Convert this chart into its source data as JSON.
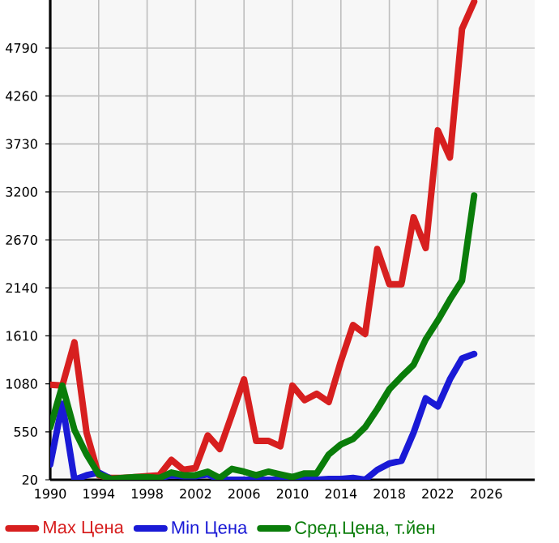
{
  "chart_data": {
    "type": "line",
    "x": [
      1990,
      1991,
      1992,
      1993,
      1994,
      1995,
      1996,
      1997,
      1998,
      1999,
      2000,
      2001,
      2002,
      2003,
      2004,
      2005,
      2006,
      2007,
      2008,
      2009,
      2010,
      2011,
      2012,
      2013,
      2014,
      2015,
      2016,
      2017,
      2018,
      2019,
      2020,
      2021,
      2022,
      2023,
      2024,
      2025
    ],
    "series": [
      {
        "name": "Max Цена",
        "color": "#d71f1f",
        "values": [
          1070,
          1060,
          1540,
          540,
          70,
          40,
          40,
          50,
          60,
          70,
          240,
          130,
          150,
          510,
          360,
          740,
          1130,
          450,
          450,
          390,
          1060,
          900,
          970,
          880,
          1330,
          1730,
          1630,
          2570,
          2180,
          2180,
          2920,
          2580,
          3880,
          3580,
          5000,
          5300
        ]
      },
      {
        "name": "Min Цена",
        "color": "#1a1ad6",
        "values": [
          190,
          860,
          20,
          70,
          100,
          30,
          30,
          40,
          20,
          40,
          70,
          60,
          60,
          80,
          20,
          20,
          20,
          20,
          20,
          20,
          20,
          20,
          20,
          30,
          30,
          40,
          20,
          130,
          200,
          230,
          540,
          920,
          830,
          1130,
          1360,
          1410
        ]
      },
      {
        "name": "Сред.Цена, т.йен",
        "color": "#0a7d0a",
        "values": [
          600,
          1060,
          570,
          300,
          80,
          30,
          40,
          50,
          50,
          40,
          100,
          70,
          70,
          110,
          40,
          140,
          110,
          70,
          110,
          80,
          50,
          90,
          90,
          300,
          410,
          470,
          600,
          800,
          1020,
          1160,
          1290,
          1570,
          1780,
          2010,
          2220,
          3160
        ]
      }
    ],
    "xlim": [
      1990,
      2030
    ],
    "ylim": [
      20,
      5320
    ],
    "xticks": [
      1990,
      1994,
      1998,
      2002,
      2006,
      2010,
      2014,
      2018,
      2022,
      2026
    ],
    "yticks": [
      20,
      550,
      1080,
      1610,
      2140,
      2670,
      3200,
      3730,
      4260,
      4790
    ],
    "grid": true,
    "legend": "bottom",
    "marker": "none",
    "line_style": "solid"
  }
}
